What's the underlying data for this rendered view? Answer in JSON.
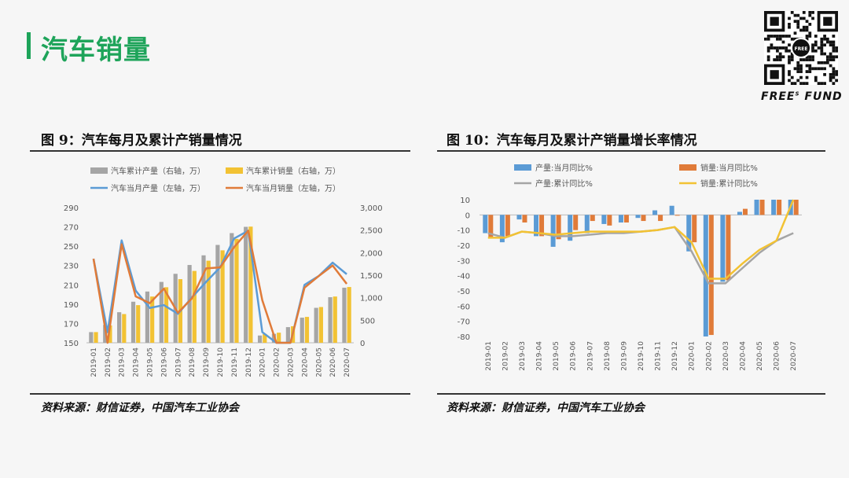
{
  "header": {
    "title": "汽车销量",
    "accent_color": "#1ea45a"
  },
  "brand": {
    "name": "FREE",
    "sup": "S",
    "suffix": " FUND",
    "qr_label": "FREE"
  },
  "figure_left": {
    "title": "图 9：汽车每月及累计产销量情况",
    "source": "资料来源：财信证券，中国汽车工业协会"
  },
  "figure_right": {
    "title": "图 10：汽车每月及累计产销量增长率情况",
    "source": "资料来源：财信证券，中国汽车工业协会"
  },
  "chart_data": [
    {
      "type": "bar+line",
      "categories": [
        "2019-01",
        "2019-02",
        "2019-03",
        "2019-04",
        "2019-05",
        "2019-06",
        "2019-07",
        "2019-08",
        "2019-09",
        "2019-10",
        "2019-11",
        "2019-12",
        "2020-01",
        "2020-02",
        "2020-03",
        "2020-04",
        "2020-05",
        "2020-06",
        "2020-07"
      ],
      "left_axis": {
        "ylim": [
          150,
          290
        ],
        "ticks": [
          150,
          170,
          190,
          210,
          230,
          250,
          270,
          290
        ]
      },
      "right_axis": {
        "ylim": [
          0,
          3000
        ],
        "ticks": [
          0,
          500,
          1000,
          1500,
          2000,
          2500,
          3000
        ],
        "tick_labels": [
          "0",
          "500",
          "1,000",
          "1,500",
          "2,000",
          "2,500",
          "3,000"
        ]
      },
      "bar_series": [
        {
          "name": "汽车累计产量（右轴，万）",
          "axis": "right",
          "color": "#a5a5a5",
          "values": [
            237,
            397,
            678,
            911,
            1137,
            1350,
            1530,
            1726,
            1940,
            2171,
            2433,
            2572,
            161,
            199,
            347,
            557,
            775,
            1011,
            1222
          ]
        },
        {
          "name": "汽车累计销量（右轴，万）",
          "axis": "right",
          "color": "#f2c233",
          "values": [
            237,
            385,
            637,
            835,
            1026,
            1232,
            1412,
            1594,
            1821,
            2051,
            2304,
            2577,
            194,
            224,
            367,
            574,
            793,
            1026,
            1237
          ]
        }
      ],
      "line_series": [
        {
          "name": "汽车当月产量（左轴，万）",
          "axis": "left",
          "color": "#5b9bd5",
          "values": [
            237,
            161,
            256,
            204,
            186,
            189,
            180,
            197,
            213,
            228,
            258,
            266,
            161,
            38,
            143,
            210,
            219,
            233,
            221
          ]
        },
        {
          "name": "汽车当月销量（左轴，万）",
          "axis": "left",
          "color": "#e07b39",
          "values": [
            237,
            148,
            252,
            198,
            191,
            206,
            181,
            196,
            227,
            228,
            249,
            266,
            194,
            31,
            143,
            207,
            219,
            230,
            211
          ]
        }
      ]
    },
    {
      "type": "bar+line",
      "categories": [
        "2019-01",
        "2019-02",
        "2019-03",
        "2019-04",
        "2019-05",
        "2019-06",
        "2019-07",
        "2019-08",
        "2019-09",
        "2019-10",
        "2019-11",
        "2019-12",
        "2020-01",
        "2020-02",
        "2020-03",
        "2020-04",
        "2020-05",
        "2020-06",
        "2020-07"
      ],
      "ylim": [
        -80,
        10
      ],
      "ticks": [
        -80,
        -70,
        -60,
        -50,
        -40,
        -30,
        -20,
        -10,
        0,
        10
      ],
      "bar_series": [
        {
          "name": "产量:当月同比%",
          "color": "#5b9bd5",
          "values": [
            -12,
            -18,
            -3,
            -14,
            -21,
            -17,
            -12,
            -6,
            -5,
            -2,
            3,
            6,
            -24,
            -80,
            -44,
            2,
            18,
            22,
            21
          ]
        },
        {
          "name": "销量:当月同比%",
          "color": "#e07b39",
          "values": [
            -15,
            -14,
            -5,
            -14,
            -16,
            -10,
            -4,
            -7,
            -5,
            -4,
            -4,
            0,
            -18,
            -79,
            -43,
            4,
            14,
            12,
            16
          ]
        }
      ],
      "line_series": [
        {
          "name": "产量:累计同比%",
          "color": "#a5a5a5",
          "values": [
            -12,
            -15,
            -11,
            -12,
            -14,
            -14,
            -13,
            -12,
            -12,
            -11,
            -10,
            -8,
            -24,
            -45,
            -45,
            -35,
            -25,
            -17,
            -12
          ]
        },
        {
          "name": "销量:累计同比%",
          "color": "#f2c233",
          "values": [
            -15,
            -15,
            -11,
            -12,
            -13,
            -12,
            -11,
            -11,
            -11,
            -11,
            -10,
            -8,
            -18,
            -42,
            -42,
            -32,
            -23,
            -17,
            12
          ]
        }
      ]
    }
  ]
}
